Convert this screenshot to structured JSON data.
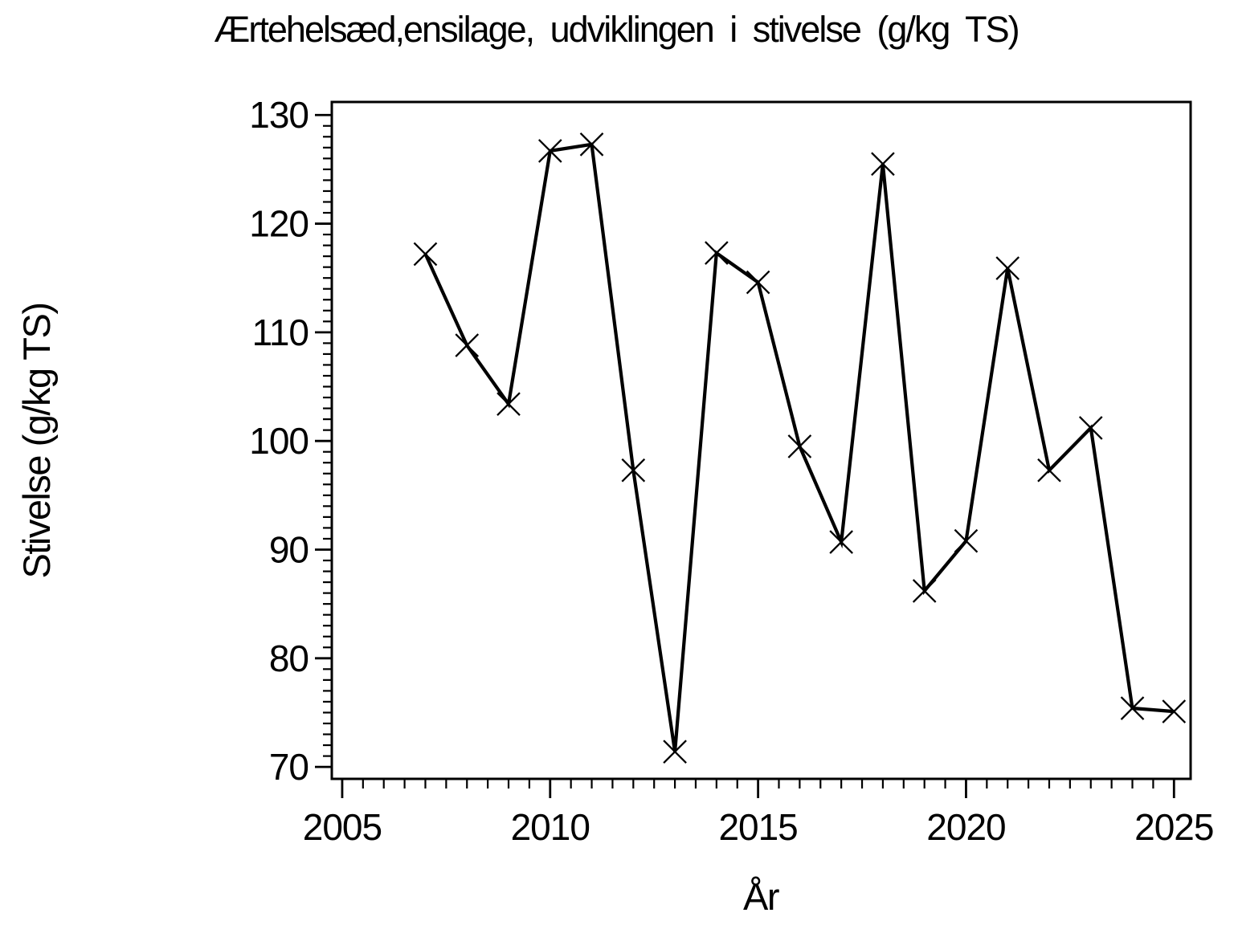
{
  "chart_data": {
    "type": "line",
    "title": "Ærtehelsæd,ensilage, udviklingen i stivelse (g/kg TS)",
    "xlabel": "År",
    "ylabel": "Stivelse (g/kg TS)",
    "series_name": "Stivelse",
    "marker": "x",
    "line_color": "#000000",
    "background_color": "#ffffff",
    "grid": false,
    "legend": false,
    "x": [
      2007,
      2008,
      2009,
      2010,
      2011,
      2012,
      2013,
      2014,
      2015,
      2016,
      2017,
      2018,
      2019,
      2020,
      2021,
      2022,
      2023,
      2024,
      2025
    ],
    "values": [
      117.2,
      108.8,
      103.4,
      126.7,
      127.3,
      97.3,
      71.4,
      117.3,
      114.6,
      99.5,
      90.7,
      125.5,
      86.2,
      90.8,
      115.9,
      97.3,
      101.2,
      75.4,
      75.1
    ],
    "x_axis": {
      "min_data": 2004.75,
      "max_data": 2025.4,
      "major_ticks": [
        2005,
        2010,
        2015,
        2020,
        2025
      ],
      "minor_step": 0.5
    },
    "y_axis": {
      "min_data": 68.9,
      "max_data": 131.2,
      "major_ticks": [
        70,
        80,
        90,
        100,
        110,
        120,
        130
      ],
      "minor_step": 1
    }
  }
}
